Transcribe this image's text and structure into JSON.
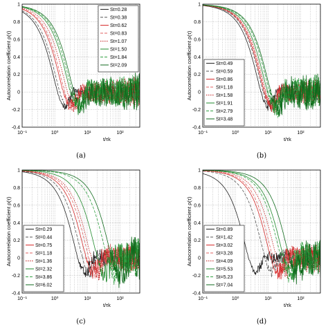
{
  "chart_data": [
    {
      "type": "line",
      "caption": "(a)",
      "ylabel": "Autocorrelation coefficient ρ(τ)",
      "xlabel": "t/τk",
      "xscale": "log",
      "xlim": [
        0.1,
        400
      ],
      "ylim": [
        -0.4,
        1
      ],
      "xticks": [
        "10⁻¹",
        "10⁰",
        "10¹",
        "10²"
      ],
      "yticks": [
        "1",
        "0.8",
        "0.6",
        "0.4",
        "0.2",
        "0",
        "-0.2",
        "-0.4"
      ],
      "grid": true,
      "legend": "top-right",
      "series": [
        {
          "name": "St=0.28",
          "color": "#222222",
          "dash": "solid",
          "t0": 1.2,
          "noise": 0.04
        },
        {
          "name": "St=0.38",
          "color": "#555555",
          "dash": "dash",
          "t0": 1.4,
          "noise": 0.05
        },
        {
          "name": "St=0.62",
          "color": "#d62a2a",
          "dash": "solid",
          "t0": 1.8,
          "noise": 0.06
        },
        {
          "name": "St=0.83",
          "color": "#e06060",
          "dash": "dash",
          "t0": 2.0,
          "noise": 0.06
        },
        {
          "name": "St=1.07",
          "color": "#c01818",
          "dash": "dot",
          "t0": 2.4,
          "noise": 0.07
        },
        {
          "name": "St=1.50",
          "color": "#1f8a2c",
          "dash": "solid",
          "t0": 3.0,
          "noise": 0.08
        },
        {
          "name": "St=1.84",
          "color": "#2fa040",
          "dash": "dash",
          "t0": 3.4,
          "noise": 0.08
        },
        {
          "name": "St=2.09",
          "color": "#0f6a1c",
          "dash": "solid",
          "t0": 3.8,
          "noise": 0.09
        }
      ]
    },
    {
      "type": "line",
      "caption": "(b)",
      "ylabel": "Autocorrelation coefficient ρ(τ)",
      "xlabel": "t/τk",
      "xscale": "log",
      "xlim": [
        0.1,
        400
      ],
      "ylim": [
        -0.4,
        1
      ],
      "xticks": [
        "10⁻¹",
        "10⁰",
        "10¹",
        "10²"
      ],
      "yticks": [
        "1",
        "0.8",
        "0.6",
        "0.4",
        "0.2",
        "0",
        "-0.2",
        "-0.4"
      ],
      "grid": true,
      "legend": "bottom-left",
      "series": [
        {
          "name": "St=0.49",
          "color": "#222222",
          "dash": "solid",
          "t0": 6.0,
          "noise": 0.04
        },
        {
          "name": "St=0.59",
          "color": "#555555",
          "dash": "dash",
          "t0": 7.0,
          "noise": 0.04
        },
        {
          "name": "St=0.86",
          "color": "#d62a2a",
          "dash": "solid",
          "t0": 7.5,
          "noise": 0.05
        },
        {
          "name": "St=1.18",
          "color": "#e06060",
          "dash": "dash",
          "t0": 8.0,
          "noise": 0.05
        },
        {
          "name": "St=1.58",
          "color": "#c01818",
          "dash": "dot",
          "t0": 8.5,
          "noise": 0.06
        },
        {
          "name": "St=1.91",
          "color": "#1f8a2c",
          "dash": "solid",
          "t0": 9.5,
          "noise": 0.07
        },
        {
          "name": "St=2.79",
          "color": "#2fa040",
          "dash": "dash",
          "t0": 11.0,
          "noise": 0.08
        },
        {
          "name": "St=3.48",
          "color": "#0f6a1c",
          "dash": "solid",
          "t0": 12.0,
          "noise": 0.09
        }
      ]
    },
    {
      "type": "line",
      "caption": "(c)",
      "ylabel": "Autocorrelation coefficient ρ(τ)",
      "xlabel": "t/τk",
      "xscale": "log",
      "xlim": [
        0.1,
        400
      ],
      "ylim": [
        -0.4,
        1
      ],
      "xticks": [
        "10⁻¹",
        "10⁰",
        "10¹",
        "10²"
      ],
      "yticks": [
        "1",
        "0.8",
        "0.6",
        "0.4",
        "0.2",
        "0",
        "-0.2",
        "-0.4"
      ],
      "grid": true,
      "legend": "bottom-left",
      "series": [
        {
          "name": "St=0.29",
          "color": "#222222",
          "dash": "solid",
          "t0": 5.0,
          "noise": 0.05
        },
        {
          "name": "St=0.44",
          "color": "#555555",
          "dash": "dash",
          "t0": 7.0,
          "noise": 0.05
        },
        {
          "name": "St=0.75",
          "color": "#d62a2a",
          "dash": "solid",
          "t0": 9.0,
          "noise": 0.06
        },
        {
          "name": "St=1.18",
          "color": "#e06060",
          "dash": "dash",
          "t0": 11.0,
          "noise": 0.06
        },
        {
          "name": "St=1.36",
          "color": "#c01818",
          "dash": "dot",
          "t0": 13.0,
          "noise": 0.07
        },
        {
          "name": "St=2.32",
          "color": "#1f8a2c",
          "dash": "solid",
          "t0": 20.0,
          "noise": 0.08
        },
        {
          "name": "St=3.86",
          "color": "#2fa040",
          "dash": "dash",
          "t0": 40.0,
          "noise": 0.09
        },
        {
          "name": "St=6.02",
          "color": "#0f6a1c",
          "dash": "solid",
          "t0": 55.0,
          "noise": 0.1
        }
      ]
    },
    {
      "type": "line",
      "caption": "(d)",
      "ylabel": "Autocorrelation coefficient ρ(τ)",
      "xlabel": "t/τk",
      "xscale": "log",
      "xlim": [
        0.1,
        400
      ],
      "ylim": [
        -0.4,
        1
      ],
      "xticks": [
        "10⁻¹",
        "10⁰",
        "10¹",
        "10²"
      ],
      "yticks": [
        "1",
        "0.8",
        "0.6",
        "0.4",
        "0.2",
        "0",
        "-0.2",
        "-0.4"
      ],
      "grid": true,
      "legend": "bottom-left",
      "series": [
        {
          "name": "St=0.89",
          "color": "#222222",
          "dash": "solid",
          "t0": 2.5,
          "noise": 0.04
        },
        {
          "name": "St=1.42",
          "color": "#555555",
          "dash": "dash",
          "t0": 8.0,
          "noise": 0.05
        },
        {
          "name": "St=3.02",
          "color": "#d62a2a",
          "dash": "solid",
          "t0": 12.0,
          "noise": 0.06
        },
        {
          "name": "St=3.28",
          "color": "#e06060",
          "dash": "dash",
          "t0": 14.0,
          "noise": 0.06
        },
        {
          "name": "St=4.09",
          "color": "#c01818",
          "dash": "dot",
          "t0": 18.0,
          "noise": 0.07
        },
        {
          "name": "St=5.53",
          "color": "#1f8a2c",
          "dash": "solid",
          "t0": 30.0,
          "noise": 0.08
        },
        {
          "name": "St=5.23",
          "color": "#2fa040",
          "dash": "dash",
          "t0": 25.0,
          "noise": 0.08
        },
        {
          "name": "St=7.04",
          "color": "#0f6a1c",
          "dash": "solid",
          "t0": 45.0,
          "noise": 0.09
        }
      ]
    }
  ]
}
